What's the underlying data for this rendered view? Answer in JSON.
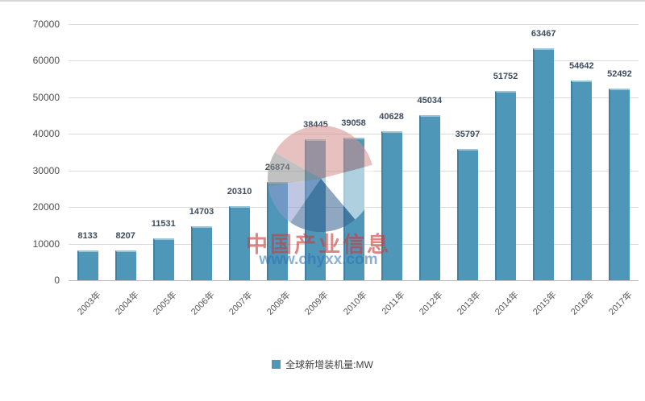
{
  "chart_data": {
    "type": "bar",
    "title": "",
    "categories": [
      "2003年",
      "2004年",
      "2005年",
      "2006年",
      "2007年",
      "2008年",
      "2009年",
      "2010年",
      "2011年",
      "2012年",
      "2013年",
      "2014年",
      "2015年",
      "2016年",
      "2017年"
    ],
    "values": [
      8133,
      8207,
      11531,
      14703,
      20310,
      26874,
      38445,
      39058,
      40628,
      45034,
      35797,
      51752,
      63467,
      54642,
      52492
    ],
    "series_name": "全球新增装机量:MW",
    "xlabel": "",
    "ylabel": "",
    "ylim": [
      0,
      70000
    ],
    "ytick_step": 10000,
    "yticks": [
      "0",
      "10000",
      "20000",
      "30000",
      "40000",
      "50000",
      "60000",
      "70000"
    ],
    "grid": true,
    "legend_position": "bottom",
    "data_labels": true,
    "colors": {
      "bar": "#4f97b9",
      "bar_top_highlight": "#9ac5d8",
      "bar_left_shade": "#41809f",
      "gridline": "#d9d9d9",
      "tick_label": "#4d4d4d",
      "value_label": "#3f4d5e",
      "legend_text": "#404040"
    }
  },
  "legend": {
    "label": "全球新增装机量:MW",
    "swatch_color": "#4f97b9"
  },
  "watermark": {
    "logo_icon": "pie-chart-logo",
    "title": "中国产业信息",
    "url": "www.chyxx.com",
    "title_color": "#c43e3c",
    "url_color": "#2870b6",
    "logo_colors": {
      "pink": "#d58f8d",
      "gray": "#909090",
      "periwinkle": "#8e9bcc",
      "dark_blue": "#36608f",
      "white_wedge": "#ffffff"
    }
  }
}
